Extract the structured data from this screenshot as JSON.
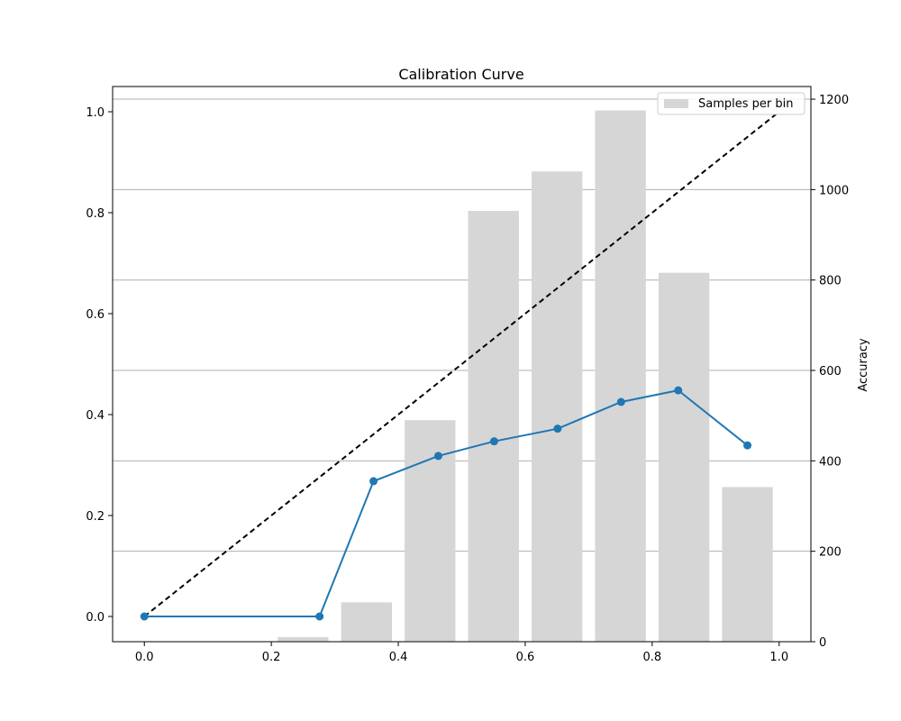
{
  "chart_data": {
    "type": "bar+line",
    "title": "Calibration Curve",
    "xlabel": "",
    "ylabel_left": "",
    "ylabel_right": "Accuracy",
    "xlim": [
      -0.05,
      1.05
    ],
    "ylim_left": [
      -0.05,
      1.05
    ],
    "ylim_right": [
      0,
      1228
    ],
    "x_ticks": [
      "0.0",
      "0.2",
      "0.4",
      "0.6",
      "0.8",
      "1.0"
    ],
    "y_left_ticks": [
      "0.0",
      "0.2",
      "0.4",
      "0.6",
      "0.8",
      "1.0"
    ],
    "y_right_ticks": [
      "0",
      "200",
      "400",
      "600",
      "800",
      "1000",
      "1200"
    ],
    "grid": "horizontal, right axis",
    "legend": {
      "position": "top-right",
      "entries": [
        "Samples per bin"
      ]
    },
    "bars": {
      "name": "Samples per bin",
      "color": "#d6d6d6",
      "width": 0.08,
      "x": [
        0.25,
        0.35,
        0.45,
        0.55,
        0.65,
        0.75,
        0.85,
        0.95
      ],
      "values": [
        10,
        87,
        490,
        953,
        1040,
        1175,
        816,
        342
      ]
    },
    "curve": {
      "color": "#1f77b4",
      "x": [
        0.0,
        0.276,
        0.361,
        0.463,
        0.551,
        0.651,
        0.751,
        0.841,
        0.95
      ],
      "y": [
        0.0,
        0.0,
        0.268,
        0.318,
        0.347,
        0.372,
        0.425,
        0.448,
        0.339
      ]
    },
    "diagonal": {
      "color": "#000000",
      "style": "dashed",
      "x": [
        0,
        1
      ],
      "y": [
        0,
        1
      ]
    }
  }
}
